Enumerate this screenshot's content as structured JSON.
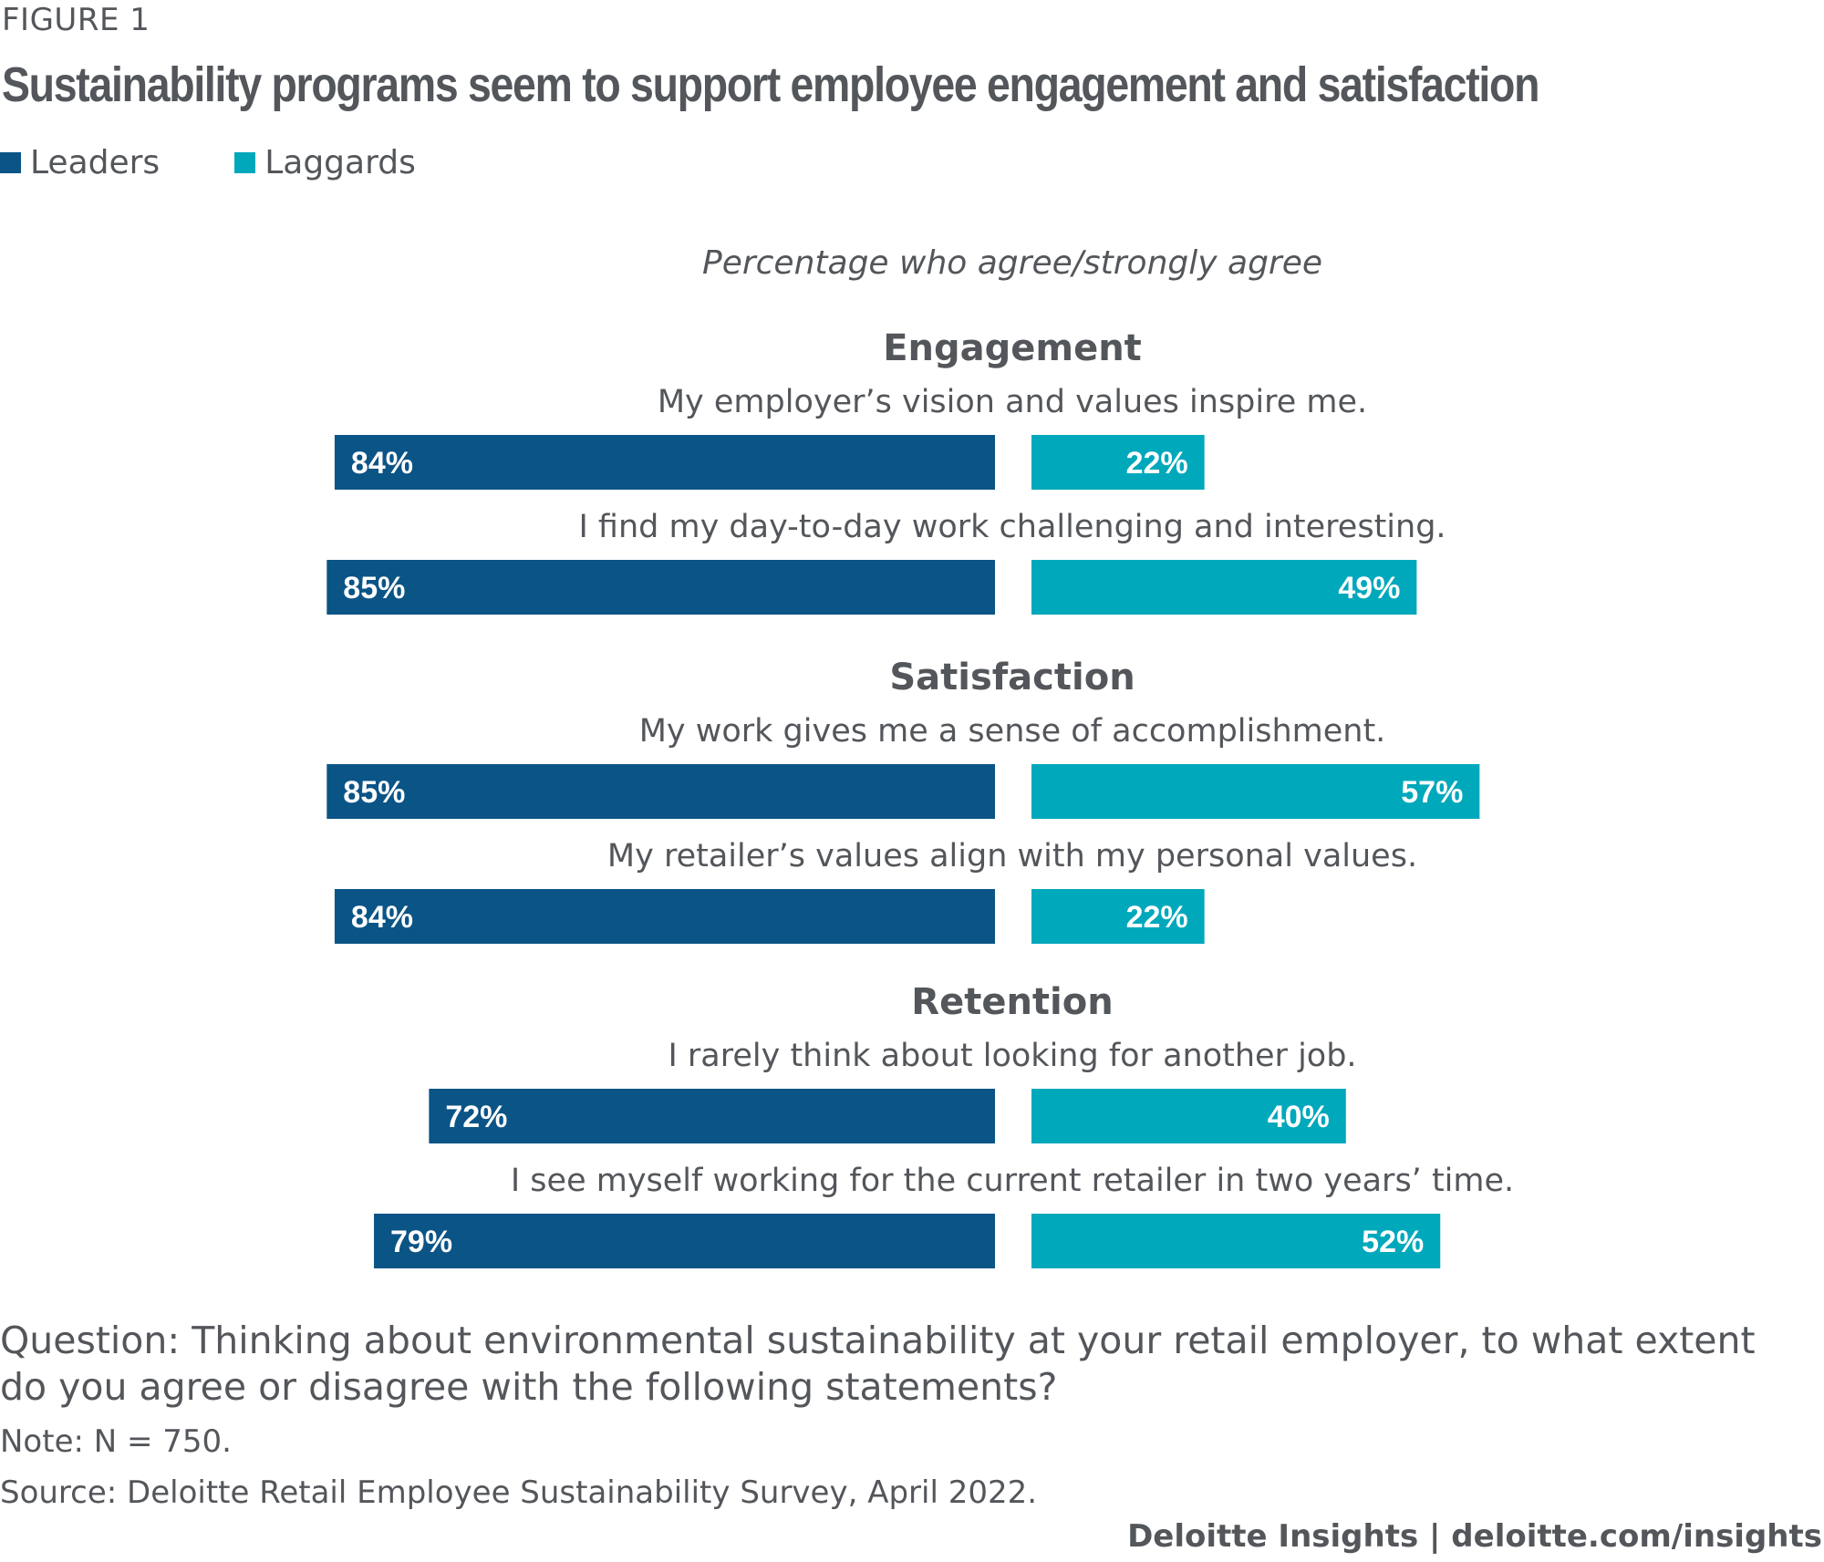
{
  "figure_label": "FIGURE 1",
  "title": "Sustainability programs seem to support employee engagement and satisfaction",
  "colors": {
    "leaders": "#0b5486",
    "laggards": "#00a8bb",
    "text": "#53565a",
    "bar_label": "#ffffff"
  },
  "footer": {
    "question": "Question: Thinking about environmental sustainability at your retail employer, to what extent do you agree or disagree with the following statements?",
    "note": "Note: N = 750.",
    "source": "Source: Deloitte Retail Employee Sustainability Survey, April 2022.",
    "brand": "Deloitte Insights | deloitte.com/insights"
  },
  "chart_data": {
    "type": "bar",
    "orientation": "horizontal-diverging",
    "title": "Sustainability programs seem to support employee engagement and satisfaction",
    "subtitle": "Percentage who agree/strongly agree",
    "xlabel": "",
    "ylabel": "",
    "unit": "%",
    "xlim": [
      0,
      100
    ],
    "legend": {
      "placement": "top-left",
      "entries": [
        "Leaders",
        "Laggards"
      ]
    },
    "grid": false,
    "groups": [
      {
        "name": "Engagement",
        "items": [
          {
            "statement": "My employer’s vision and values inspire me.",
            "Leaders": 84,
            "Laggards": 22
          },
          {
            "statement": "I find my day-to-day work challenging and interesting.",
            "Leaders": 85,
            "Laggards": 49
          }
        ]
      },
      {
        "name": "Satisfaction",
        "items": [
          {
            "statement": "My work gives me a sense of accomplishment.",
            "Leaders": 85,
            "Laggards": 57
          },
          {
            "statement": "My retailer’s values align with my personal values.",
            "Leaders": 84,
            "Laggards": 22
          }
        ]
      },
      {
        "name": "Retention",
        "items": [
          {
            "statement": "I rarely think about looking for another job.",
            "Leaders": 72,
            "Laggards": 40
          },
          {
            "statement": "I see myself working for the current retailer in two years’ time.",
            "Leaders": 79,
            "Laggards": 52
          }
        ]
      }
    ],
    "series": [
      {
        "name": "Leaders",
        "values": [
          84,
          85,
          85,
          84,
          72,
          79
        ]
      },
      {
        "name": "Laggards",
        "values": [
          22,
          49,
          57,
          22,
          40,
          52
        ]
      }
    ]
  }
}
